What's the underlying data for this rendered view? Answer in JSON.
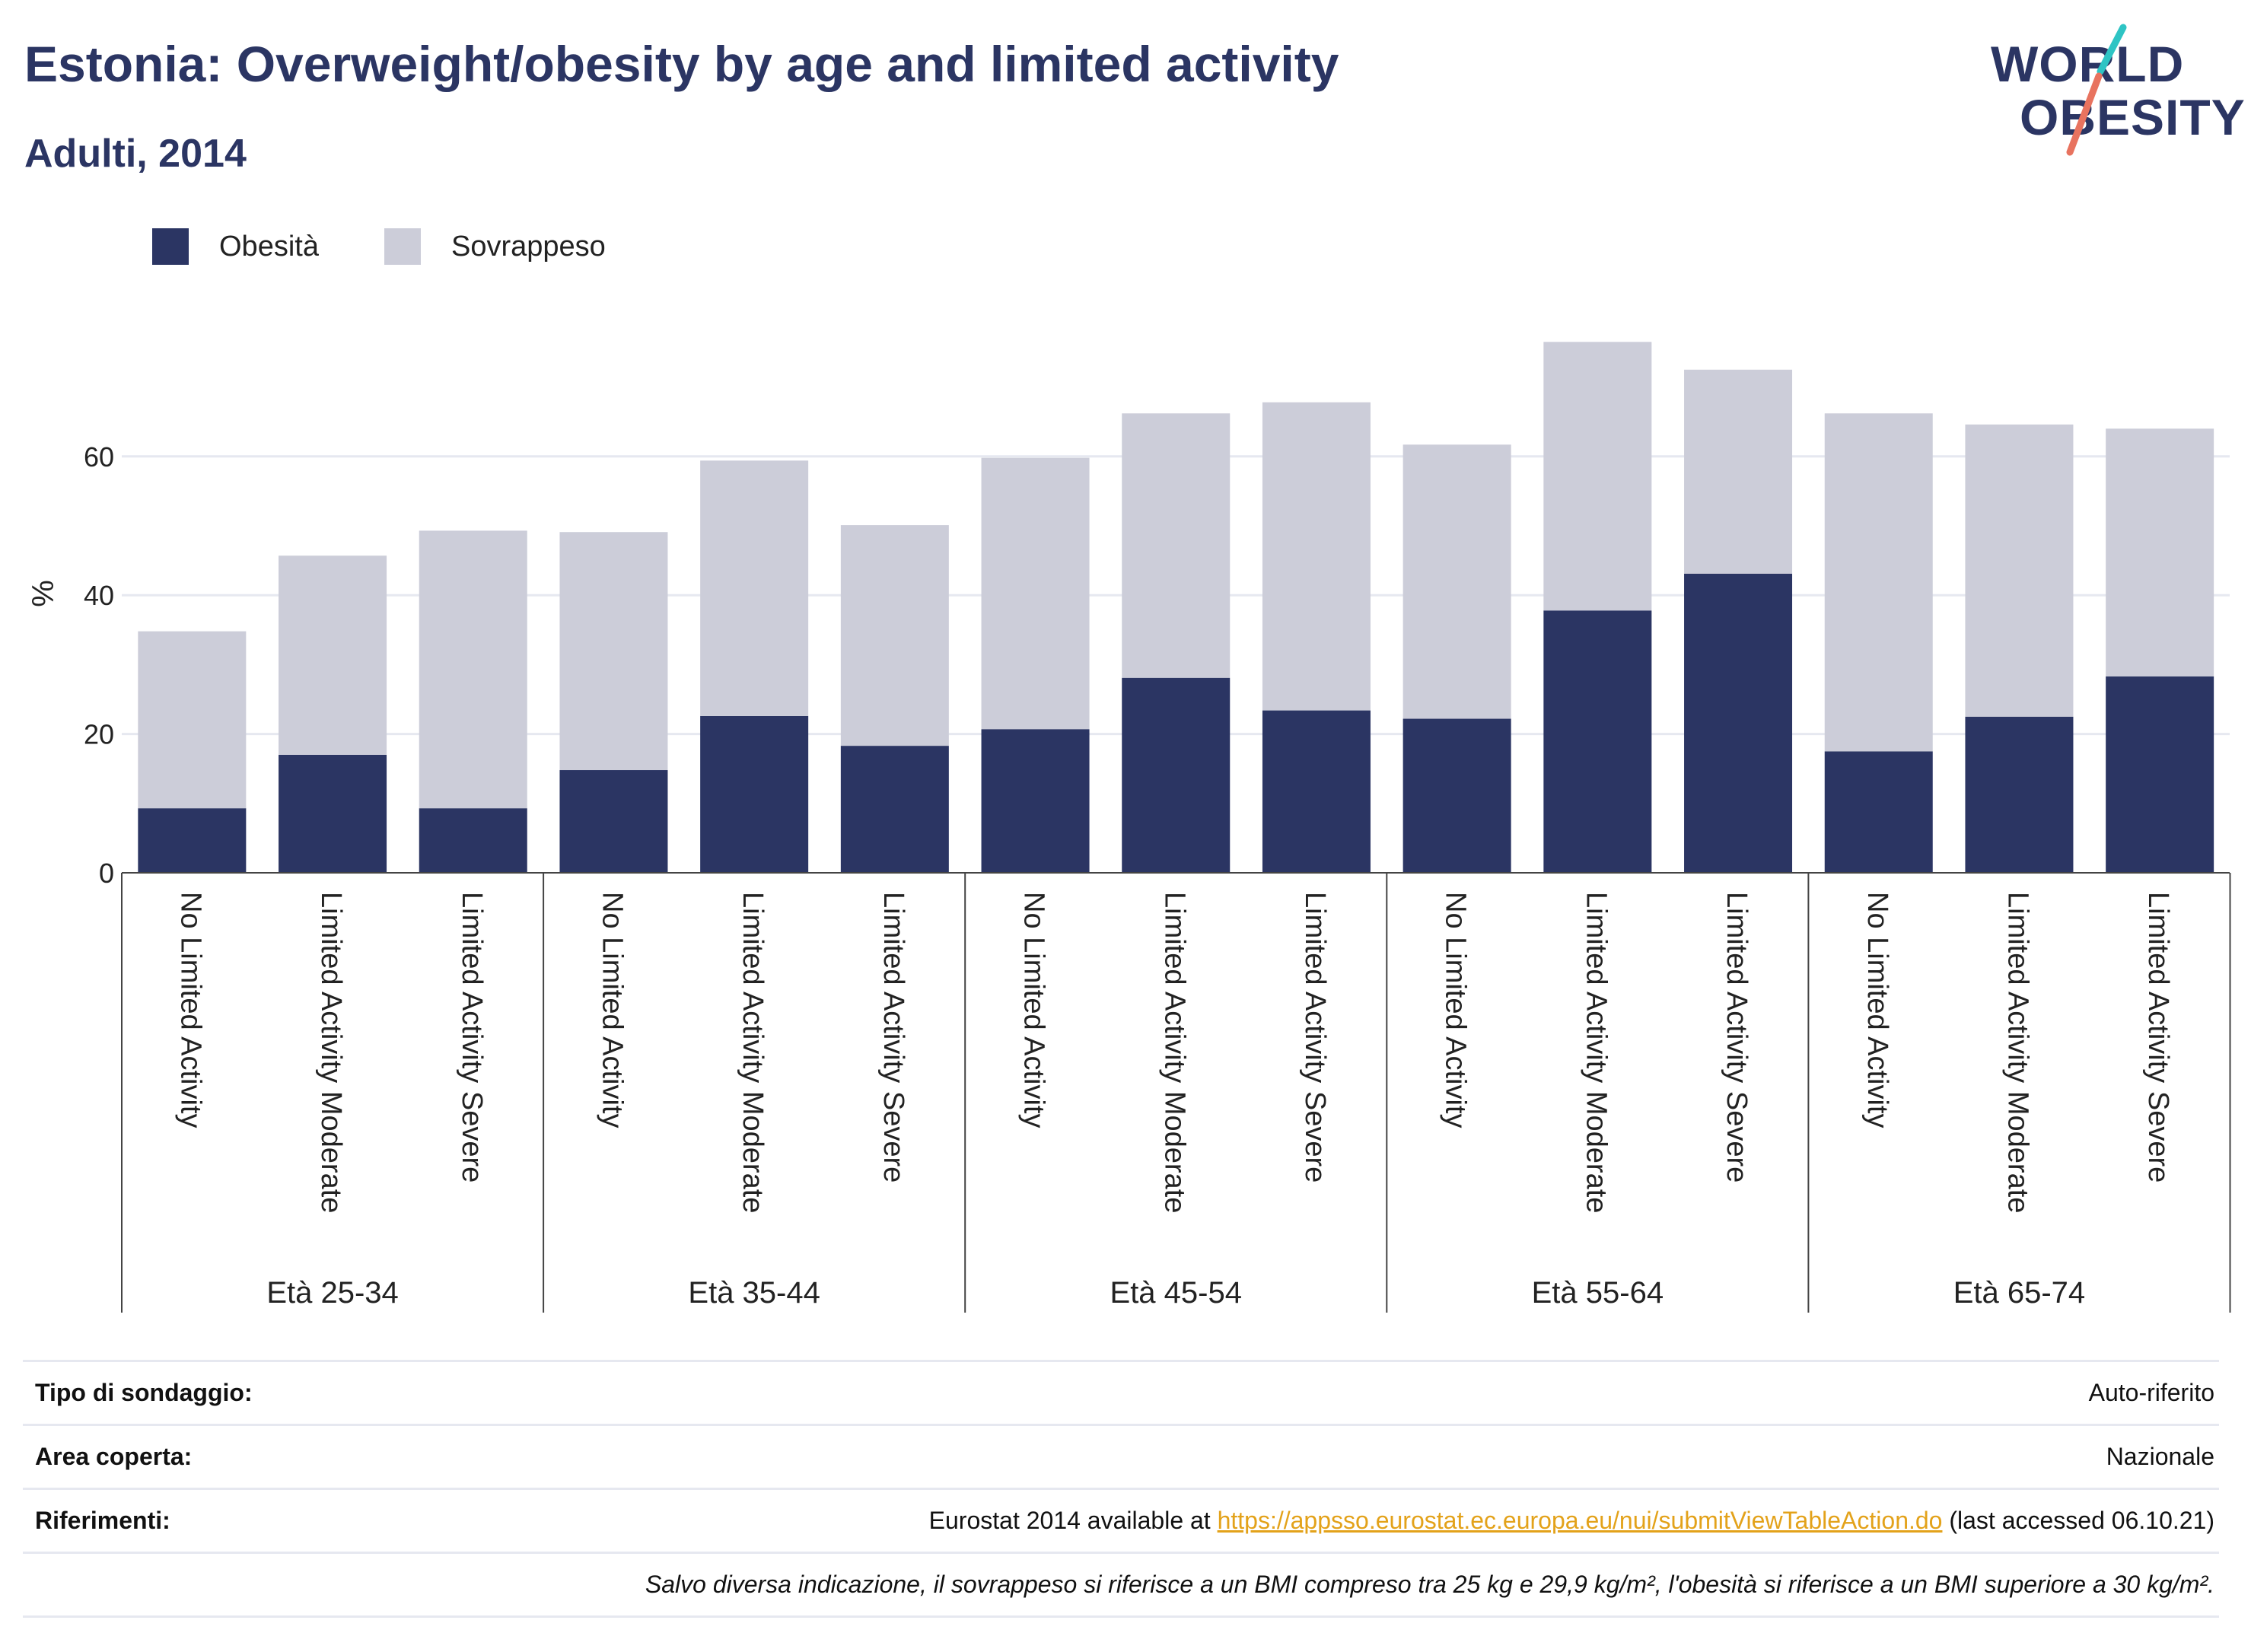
{
  "title": "Estonia: Overweight/obesity by age and limited activity",
  "subtitle": "Adulti, 2014",
  "logo": {
    "line1": "WORLD",
    "line2": "OBESITY"
  },
  "colors": {
    "obesity": "#2b3563",
    "overweight": "#cccdd9",
    "title": "#2b3563",
    "grid": "#e6e8f0",
    "link": "#e3a21a",
    "logo_accent_teal": "#2ec4c4",
    "logo_accent_coral": "#e8735f"
  },
  "legend": {
    "obesity_label": "Obesità",
    "overweight_label": "Sovrappeso",
    "placement": "top-left"
  },
  "chart_data": {
    "type": "bar",
    "stacked": true,
    "ylabel": "%",
    "ylim": [
      0,
      80
    ],
    "yticks": [
      0,
      20,
      40,
      60
    ],
    "grid": true,
    "groups": [
      {
        "label": "Età 25-34",
        "categories": [
          "No Limited Activity",
          "Limited Activity Moderate",
          "Limited Activity Severe"
        ]
      },
      {
        "label": "Età 35-44",
        "categories": [
          "No Limited Activity",
          "Limited Activity Moderate",
          "Limited Activity Severe"
        ]
      },
      {
        "label": "Età 45-54",
        "categories": [
          "No Limited Activity",
          "Limited Activity Moderate",
          "Limited Activity Severe"
        ]
      },
      {
        "label": "Età 55-64",
        "categories": [
          "No Limited Activity",
          "Limited Activity Moderate",
          "Limited Activity Severe"
        ]
      },
      {
        "label": "Età 65-74",
        "categories": [
          "No Limited Activity",
          "Limited Activity Moderate",
          "Limited Activity Severe"
        ]
      }
    ],
    "series": [
      {
        "name": "Obesità",
        "values": [
          9.3,
          17.0,
          9.3,
          14.8,
          22.6,
          18.3,
          20.7,
          28.1,
          23.4,
          22.2,
          37.8,
          43.1,
          17.5,
          22.5,
          28.3
        ]
      },
      {
        "name": "Sovrappeso",
        "values": [
          25.5,
          28.7,
          40.0,
          34.3,
          36.8,
          31.8,
          39.1,
          38.1,
          44.4,
          39.5,
          38.7,
          29.4,
          48.7,
          42.1,
          35.7
        ]
      }
    ]
  },
  "meta": [
    {
      "key": "Tipo di sondaggio:",
      "value": "Auto-riferito"
    },
    {
      "key": "Area coperta:",
      "value": "Nazionale"
    },
    {
      "key": "Riferimenti:",
      "prefix": "Eurostat 2014 available at ",
      "link": "https://appsso.eurostat.ec.europa.eu/nui/submitViewTableAction.do",
      "suffix": " (last accessed 06.10.21)"
    }
  ],
  "note": "Salvo diversa indicazione, il sovrappeso si riferisce a un BMI compreso tra 25 kg e 29,9 kg/m², l'obesità si riferisce a un BMI superiore a 30 kg/m²."
}
